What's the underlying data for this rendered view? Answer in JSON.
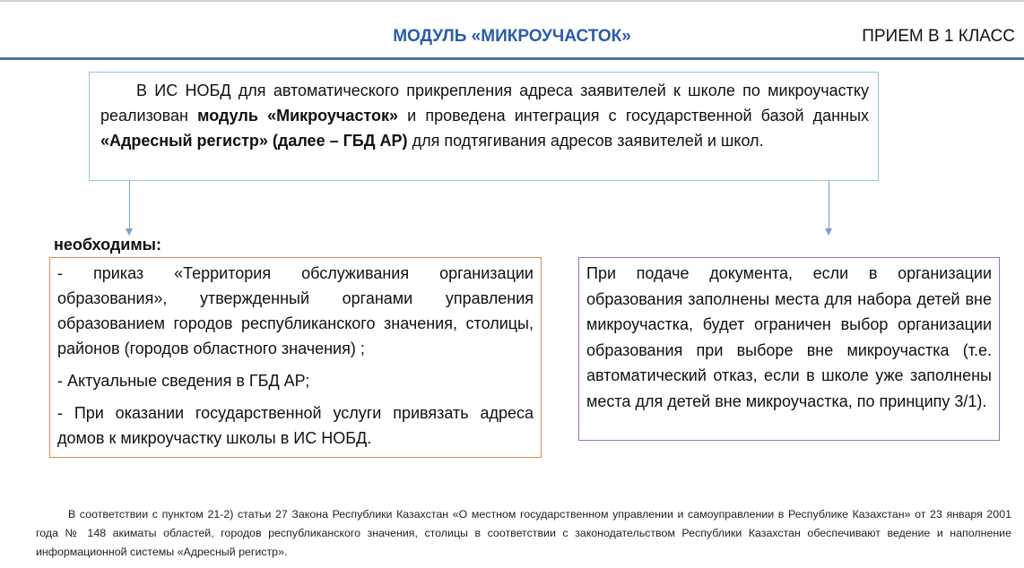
{
  "header": {
    "title": "МОДУЛЬ «МИКРОУЧАСТОК»",
    "subtitle": "ПРИЕМ В 1 КЛАСС"
  },
  "intro": {
    "t1": "В ИС НОБД для автоматического прикрепления адреса заявителей к школе по микроучастку реализован ",
    "b1": "модуль «Микроучасток»",
    "t2": " и проведена интеграция с государственной базой данных ",
    "b2": "«Адресный регистр» (далее – ГБД АР)",
    "t3": " для подтягивания адресов заявителей и школ."
  },
  "requirements": {
    "heading": "необходимы:",
    "items": [
      "- приказ «Территория обслуживания организации образования», утвержденный органами управления образованием городов республиканского значения, столицы, районов (городов областного значения) ;",
      "- Актуальные сведения в ГБД АР;",
      "- При оказании государственной услуги привязать адреса домов к микроучастку школы в ИС НОБД."
    ]
  },
  "note": "При подаче документа, если в организации образования заполнены места для набора детей вне микроучастка, будет ограничен выбор организации образования при выборе вне микроучастка (т.е. автоматический отказ, если в школе уже заполнены места для детей вне микроучастка, по принципу 3/1).",
  "footer": "В соответствии с пунктом 21-2) статьи 27 Закона Республики Казахстан «О местном государственном управлении и самоуправлении в Республике Казахстан» от 23 января 2001 года № 148 акиматы областей, городов республиканского значения, столицы в соответствии с законодательством Республики Казахстан обеспечивают ведение и наполнение информационной системы «Адресный регистр».",
  "colors": {
    "title": "#2a5caa",
    "rule": "#4f6f9a",
    "main_border": "#8fc7d9",
    "left_border": "#d9895a",
    "right_border": "#9b72b8"
  }
}
